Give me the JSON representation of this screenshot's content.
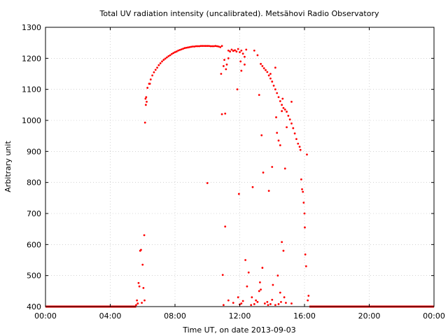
{
  "chart_data": {
    "type": "scatter",
    "title": "Total UV radiation intensity (uncalibrated). Metsähovi Radio Observatory",
    "xlabel": "Time UT, on date 2013-09-03",
    "ylabel": "Arbitrary unit",
    "x_unit": "hours UT",
    "xlim": [
      0,
      24
    ],
    "ylim": [
      400,
      1300
    ],
    "x_ticks": [
      {
        "value": 0,
        "label": "00:00"
      },
      {
        "value": 4,
        "label": "04:00"
      },
      {
        "value": 8,
        "label": "08:00"
      },
      {
        "value": 12,
        "label": "12:00"
      },
      {
        "value": 16,
        "label": "16:00"
      },
      {
        "value": 20,
        "label": "20:00"
      },
      {
        "value": 24,
        "label": "00:00"
      }
    ],
    "y_ticks": [
      {
        "value": 400,
        "label": "400"
      },
      {
        "value": 500,
        "label": "500"
      },
      {
        "value": 600,
        "label": "600"
      },
      {
        "value": 700,
        "label": "700"
      },
      {
        "value": 800,
        "label": "800"
      },
      {
        "value": 900,
        "label": "900"
      },
      {
        "value": 1000,
        "label": "1000"
      },
      {
        "value": 1100,
        "label": "1100"
      },
      {
        "value": 1200,
        "label": "1200"
      },
      {
        "value": 1300,
        "label": "1300"
      }
    ],
    "grid": true,
    "marker_color": "#ff0000",
    "baseline_value": 400,
    "baseline_ranges": [
      [
        0,
        5.6
      ],
      [
        16.3,
        24
      ]
    ],
    "series": [
      {
        "points": [
          [
            5.6,
            405
          ],
          [
            5.65,
            420
          ],
          [
            5.7,
            410
          ],
          [
            5.75,
            476
          ],
          [
            5.8,
            465
          ],
          [
            5.85,
            580
          ],
          [
            5.9,
            583
          ],
          [
            5.95,
            412
          ],
          [
            6.0,
            535
          ],
          [
            6.05,
            460
          ],
          [
            6.1,
            630
          ],
          [
            6.12,
            420
          ],
          [
            6.15,
            993
          ],
          [
            6.18,
            1070
          ],
          [
            6.2,
            1050
          ],
          [
            6.22,
            1075
          ],
          [
            6.3,
            1105
          ],
          [
            6.4,
            1118
          ],
          [
            6.5,
            1132
          ],
          [
            6.6,
            1145
          ],
          [
            6.7,
            1155
          ],
          [
            6.8,
            1163
          ],
          [
            6.9,
            1170
          ],
          [
            7.0,
            1178
          ],
          [
            7.1,
            1184
          ],
          [
            7.2,
            1190
          ],
          [
            7.3,
            1195
          ],
          [
            7.4,
            1199
          ],
          [
            7.5,
            1203
          ],
          [
            7.6,
            1207
          ],
          [
            7.7,
            1210
          ],
          [
            7.8,
            1214
          ],
          [
            7.9,
            1217
          ],
          [
            8.0,
            1220
          ],
          [
            8.1,
            1222
          ],
          [
            8.2,
            1225
          ],
          [
            8.3,
            1227
          ],
          [
            8.4,
            1229
          ],
          [
            8.5,
            1231
          ],
          [
            8.6,
            1233
          ],
          [
            8.7,
            1234
          ],
          [
            8.8,
            1235
          ],
          [
            8.9,
            1236
          ],
          [
            9.0,
            1237
          ],
          [
            9.1,
            1238
          ],
          [
            9.2,
            1238
          ],
          [
            9.3,
            1239
          ],
          [
            9.4,
            1239
          ],
          [
            9.5,
            1239
          ],
          [
            9.6,
            1240
          ],
          [
            9.7,
            1240
          ],
          [
            9.8,
            1240
          ],
          [
            9.9,
            1240
          ],
          [
            10.0,
            1240
          ],
          [
            10.1,
            1240
          ],
          [
            10.2,
            1239
          ],
          [
            10.3,
            1239
          ],
          [
            10.4,
            1239
          ],
          [
            10.5,
            1240
          ],
          [
            10.6,
            1239
          ],
          [
            10.7,
            1238
          ],
          [
            10.8,
            1236
          ],
          [
            10.9,
            1240
          ],
          [
            6.45,
            1118
          ],
          [
            6.25,
            1060
          ],
          [
            10.0,
            798
          ],
          [
            10.85,
            1150
          ],
          [
            10.9,
            1020
          ],
          [
            11.0,
            1175
          ],
          [
            11.05,
            1195
          ],
          [
            11.1,
            1022
          ],
          [
            11.15,
            1165
          ],
          [
            11.2,
            1180
          ],
          [
            11.3,
            1200
          ],
          [
            11.1,
            658
          ],
          [
            10.95,
            502
          ],
          [
            11.3,
            1225
          ],
          [
            11.4,
            1222
          ],
          [
            11.5,
            1228
          ],
          [
            11.6,
            1224
          ],
          [
            11.7,
            1226
          ],
          [
            11.8,
            1222
          ],
          [
            11.9,
            1230
          ],
          [
            12.0,
            1220
          ],
          [
            12.1,
            1225
          ],
          [
            12.2,
            1215
          ],
          [
            12.3,
            1205
          ],
          [
            12.4,
            1228
          ],
          [
            11.85,
            1100
          ],
          [
            11.95,
            763
          ],
          [
            12.05,
            1190
          ],
          [
            12.1,
            1160
          ],
          [
            12.3,
            1180
          ],
          [
            12.35,
            550
          ],
          [
            12.45,
            465
          ],
          [
            12.55,
            510
          ],
          [
            12.8,
            785
          ],
          [
            12.9,
            1225
          ],
          [
            13.1,
            1210
          ],
          [
            13.3,
            1182
          ],
          [
            13.4,
            1175
          ],
          [
            13.5,
            1168
          ],
          [
            13.6,
            1162
          ],
          [
            13.7,
            1156
          ],
          [
            13.8,
            1145
          ],
          [
            13.9,
            1135
          ],
          [
            14.0,
            1125
          ],
          [
            14.1,
            1112
          ],
          [
            14.2,
            1100
          ],
          [
            14.3,
            1088
          ],
          [
            14.4,
            1075
          ],
          [
            14.5,
            1062
          ],
          [
            14.6,
            1050
          ],
          [
            14.7,
            1040
          ],
          [
            14.8,
            1035
          ],
          [
            14.9,
            1028
          ],
          [
            15.0,
            1015
          ],
          [
            15.1,
            1003
          ],
          [
            15.2,
            990
          ],
          [
            15.3,
            975
          ],
          [
            15.4,
            958
          ],
          [
            15.5,
            940
          ],
          [
            15.6,
            925
          ],
          [
            15.7,
            915
          ],
          [
            15.75,
            905
          ],
          [
            13.2,
            1082
          ],
          [
            13.35,
            952
          ],
          [
            13.45,
            832
          ],
          [
            13.8,
            773
          ],
          [
            14.0,
            850
          ],
          [
            14.25,
            1010
          ],
          [
            14.3,
            960
          ],
          [
            14.4,
            935
          ],
          [
            14.5,
            920
          ],
          [
            14.6,
            1030
          ],
          [
            14.65,
            1070
          ],
          [
            14.8,
            845
          ],
          [
            14.9,
            978
          ],
          [
            15.2,
            1060
          ],
          [
            13.9,
            1150
          ],
          [
            14.2,
            1170
          ],
          [
            15.8,
            810
          ],
          [
            15.85,
            778
          ],
          [
            15.9,
            770
          ],
          [
            15.95,
            735
          ],
          [
            16.0,
            700
          ],
          [
            16.02,
            655
          ],
          [
            16.05,
            568
          ],
          [
            16.1,
            530
          ],
          [
            16.15,
            890
          ],
          [
            12.7,
            405
          ],
          [
            12.75,
            430
          ],
          [
            12.9,
            408
          ],
          [
            13.0,
            420
          ],
          [
            13.1,
            415
          ],
          [
            13.2,
            450
          ],
          [
            13.25,
            478
          ],
          [
            13.3,
            455
          ],
          [
            13.4,
            525
          ],
          [
            13.55,
            410
          ],
          [
            13.7,
            415
          ],
          [
            13.75,
            405
          ],
          [
            13.9,
            408
          ],
          [
            14.0,
            422
          ],
          [
            14.05,
            470
          ],
          [
            14.35,
            500
          ],
          [
            14.4,
            408
          ],
          [
            14.5,
            445
          ],
          [
            14.55,
            415
          ],
          [
            14.6,
            608
          ],
          [
            14.7,
            580
          ],
          [
            14.75,
            430
          ],
          [
            14.85,
            412
          ],
          [
            12.0,
            407
          ],
          [
            11.6,
            412
          ],
          [
            11.3,
            420
          ],
          [
            11.0,
            405
          ],
          [
            11.9,
            430
          ],
          [
            12.2,
            418
          ],
          [
            12.1,
            410
          ],
          [
            14.2,
            405
          ],
          [
            15.2,
            410
          ],
          [
            16.2,
            420
          ],
          [
            16.25,
            435
          ]
        ]
      }
    ]
  }
}
